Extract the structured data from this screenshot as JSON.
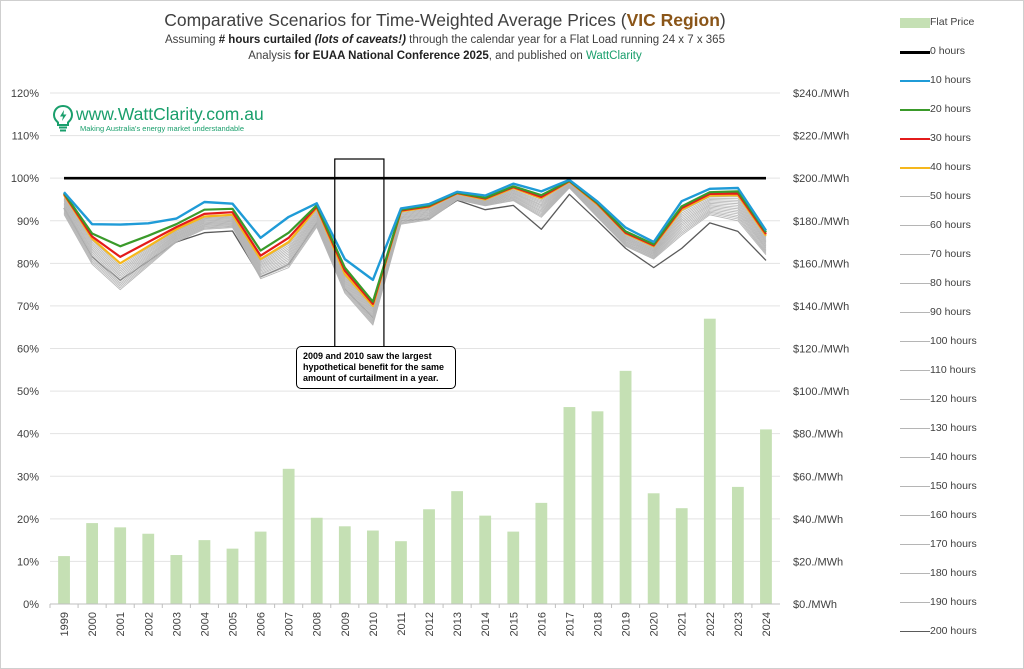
{
  "header": {
    "title_main": "Comparative Scenarios for Time-Weighted Average Prices (",
    "title_accent": "VIC Region",
    "title_end": ")",
    "sub1_a": "Assuming ",
    "sub1_b": "# hours curtailed",
    "sub1_c": " (lots of caveats!)",
    "sub1_d": " through the calendar year for a Flat Load running 24 x 7 x 365",
    "sub2_a": "Analysis ",
    "sub2_b": "for EUAA National Conference 2025",
    "sub2_c": ", and published on ",
    "sub2_d": "WattClarity"
  },
  "logo": {
    "text": "www.WattClarity.com.au",
    "tagline": "Making Australia's energy market understandable",
    "icon": "lightbulb-icon"
  },
  "annotation": {
    "text": "2009 and 2010 saw the largest hypothetical benefit for the same amount of curtailment in a year."
  },
  "colors": {
    "bar": "#c5e0b4",
    "h0": "#000000",
    "h10": "#1f9bd7",
    "h20": "#3a9a2a",
    "h30": "#e31b1b",
    "h40": "#f5b71d",
    "grey": "#b5b5b5",
    "h200": "#5a5a5a"
  },
  "chart_data": {
    "type": "bar+line",
    "categories": [
      "1999",
      "2000",
      "2001",
      "2002",
      "2003",
      "2004",
      "2005",
      "2006",
      "2007",
      "2008",
      "2009",
      "2010",
      "2011",
      "2012",
      "2013",
      "2014",
      "2015",
      "2016",
      "2017",
      "2018",
      "2019",
      "2020",
      "2021",
      "2022",
      "2023",
      "2024"
    ],
    "left_axis": {
      "min": 0,
      "max": 120,
      "ticks": [
        "0%",
        "10%",
        "20%",
        "30%",
        "40%",
        "50%",
        "60%",
        "70%",
        "80%",
        "90%",
        "100%",
        "110%",
        "120%"
      ]
    },
    "right_axis": {
      "min": 0,
      "max": 240,
      "ticks": [
        "$0./MWh",
        "$20./MWh",
        "$40./MWh",
        "$60./MWh",
        "$80./MWh",
        "$100./MWh",
        "$120./MWh",
        "$140./MWh",
        "$160./MWh",
        "$180./MWh",
        "$200./MWh",
        "$220./MWh",
        "$240./MWh"
      ]
    },
    "bars": {
      "name": "Flat Price",
      "values": [
        22.5,
        38,
        36,
        33,
        23,
        30,
        26,
        34,
        63.5,
        40.5,
        36.5,
        34.5,
        29.5,
        44.5,
        53,
        41.5,
        34,
        47.5,
        92.5,
        90.5,
        109.5,
        52,
        45,
        134,
        55,
        82
      ]
    },
    "series": [
      {
        "name": "0 hours",
        "values": [
          100,
          100,
          100,
          100,
          100,
          100,
          100,
          100,
          100,
          100,
          100,
          100,
          100,
          100,
          100,
          100,
          100,
          100,
          100,
          100,
          100,
          100,
          100,
          100,
          100,
          100
        ]
      },
      {
        "name": "10 hours",
        "values": [
          96.7,
          89.2,
          89.1,
          89.4,
          90.5,
          94.4,
          94.0,
          86.0,
          90.9,
          94.1,
          81.0,
          76.1,
          92.9,
          93.9,
          96.8,
          95.9,
          98.7,
          96.9,
          99.6,
          94.5,
          88.4,
          85.0,
          94.6,
          97.5,
          97.7,
          87.7
        ]
      },
      {
        "name": "20 hours",
        "values": [
          96.5,
          87.0,
          84.0,
          86.5,
          89.2,
          92.6,
          92.8,
          83.0,
          87.2,
          93.6,
          79.0,
          71.0,
          92.6,
          93.6,
          96.6,
          95.4,
          98.1,
          96.0,
          99.4,
          94.2,
          87.5,
          84.5,
          93.4,
          96.7,
          96.9,
          87.3
        ]
      },
      {
        "name": "30 hours",
        "values": [
          96.3,
          86.3,
          81.5,
          85.0,
          88.5,
          91.6,
          92.0,
          81.8,
          86.0,
          93.3,
          78.3,
          70.5,
          92.4,
          93.4,
          96.5,
          95.2,
          97.9,
          95.6,
          99.3,
          94.0,
          87.2,
          84.2,
          93.0,
          96.3,
          96.4,
          86.9
        ]
      },
      {
        "name": "40 hours",
        "values": [
          96.1,
          85.8,
          80.0,
          84.0,
          88.0,
          91.0,
          91.4,
          81.0,
          85.0,
          93.0,
          77.5,
          70.0,
          92.2,
          93.2,
          96.4,
          95.0,
          97.7,
          95.3,
          99.2,
          93.8,
          87.0,
          84.0,
          92.6,
          95.9,
          96.0,
          86.5
        ]
      },
      {
        "name": "50 hours",
        "values": [
          95.7,
          85.4,
          79.4,
          83.6,
          87.8,
          90.8,
          91.2,
          80.6,
          84.6,
          92.7,
          77.2,
          69.7,
          92.0,
          93.0,
          96.3,
          94.9,
          97.5,
          95.0,
          99.1,
          93.6,
          86.8,
          83.8,
          92.2,
          95.6,
          95.6,
          86.2
        ]
      },
      {
        "name": "60 hours",
        "values": [
          95.4,
          85.0,
          79.0,
          83.3,
          87.6,
          90.6,
          91.0,
          80.3,
          84.2,
          92.4,
          76.9,
          69.4,
          91.8,
          92.8,
          96.2,
          94.8,
          97.3,
          94.7,
          99.0,
          93.4,
          86.6,
          83.6,
          91.8,
          95.3,
          95.2,
          85.9
        ]
      },
      {
        "name": "70 hours",
        "values": [
          95.1,
          84.6,
          78.6,
          83.0,
          87.4,
          90.4,
          90.8,
          80.0,
          83.8,
          92.1,
          76.6,
          69.1,
          91.6,
          92.6,
          96.1,
          94.7,
          97.1,
          94.4,
          98.9,
          93.2,
          86.4,
          83.4,
          91.4,
          95.0,
          94.8,
          85.6
        ]
      },
      {
        "name": "80 hours",
        "values": [
          94.8,
          84.2,
          78.2,
          82.7,
          87.2,
          90.2,
          90.6,
          79.7,
          83.4,
          91.8,
          76.3,
          68.8,
          91.4,
          92.4,
          96.0,
          94.6,
          96.9,
          94.1,
          98.8,
          93.0,
          86.2,
          83.2,
          91.0,
          94.7,
          94.4,
          85.3
        ]
      },
      {
        "name": "90 hours",
        "values": [
          94.5,
          83.8,
          77.8,
          82.4,
          87.0,
          90.0,
          90.4,
          79.4,
          83.0,
          91.5,
          76.0,
          68.5,
          91.2,
          92.2,
          95.9,
          94.5,
          96.7,
          93.8,
          98.7,
          92.8,
          86.0,
          83.0,
          90.6,
          94.4,
          94.0,
          85.0
        ]
      },
      {
        "name": "100 hours",
        "values": [
          94.2,
          83.4,
          77.4,
          82.1,
          86.8,
          89.8,
          90.2,
          79.1,
          82.6,
          91.2,
          75.7,
          68.2,
          91.0,
          92.0,
          95.8,
          94.4,
          96.5,
          93.5,
          98.6,
          92.6,
          85.8,
          82.8,
          90.2,
          94.1,
          93.6,
          84.7
        ]
      },
      {
        "name": "110 hours",
        "values": [
          93.9,
          83.0,
          77.0,
          81.8,
          86.6,
          89.6,
          90.0,
          78.8,
          82.2,
          90.9,
          75.4,
          67.9,
          90.8,
          91.8,
          95.7,
          94.3,
          96.3,
          93.2,
          98.5,
          92.4,
          85.6,
          82.6,
          89.8,
          93.8,
          93.2,
          84.4
        ]
      },
      {
        "name": "120 hours",
        "values": [
          93.6,
          82.6,
          76.6,
          81.5,
          86.4,
          89.4,
          89.8,
          78.5,
          81.8,
          90.6,
          75.1,
          67.6,
          90.6,
          91.6,
          95.6,
          94.2,
          96.1,
          92.9,
          98.4,
          92.2,
          85.4,
          82.4,
          89.4,
          93.5,
          92.8,
          84.1
        ]
      },
      {
        "name": "130 hours",
        "values": [
          93.3,
          82.2,
          76.2,
          81.2,
          86.2,
          89.2,
          89.6,
          78.2,
          81.4,
          90.3,
          74.8,
          67.3,
          90.4,
          91.4,
          95.5,
          94.1,
          95.9,
          92.6,
          98.3,
          92.0,
          85.2,
          82.2,
          89.0,
          93.2,
          92.4,
          83.8
        ]
      },
      {
        "name": "140 hours",
        "values": [
          93.0,
          81.8,
          75.8,
          80.9,
          86.0,
          89.0,
          89.4,
          77.9,
          81.0,
          90.0,
          74.5,
          67.0,
          90.2,
          91.2,
          95.4,
          94.0,
          95.7,
          92.3,
          98.2,
          91.8,
          85.0,
          82.0,
          88.6,
          92.9,
          92.0,
          83.5
        ]
      },
      {
        "name": "150 hours",
        "values": [
          92.7,
          81.4,
          75.4,
          80.6,
          85.8,
          88.8,
          89.2,
          77.6,
          80.6,
          89.7,
          74.2,
          66.7,
          90.0,
          91.0,
          95.3,
          93.9,
          95.5,
          92.0,
          98.1,
          91.6,
          84.8,
          81.8,
          88.2,
          92.6,
          91.6,
          83.2
        ]
      },
      {
        "name": "160 hours",
        "values": [
          92.4,
          81.0,
          75.0,
          80.3,
          85.6,
          88.6,
          89.0,
          77.3,
          80.2,
          89.4,
          73.9,
          66.4,
          89.8,
          90.8,
          95.2,
          93.8,
          95.3,
          91.7,
          98.0,
          91.4,
          84.6,
          81.6,
          87.8,
          92.3,
          91.2,
          82.9
        ]
      },
      {
        "name": "170 hours",
        "values": [
          92.1,
          80.6,
          74.6,
          80.0,
          85.4,
          88.4,
          88.8,
          77.0,
          79.8,
          89.1,
          73.6,
          66.1,
          89.6,
          90.6,
          95.1,
          93.7,
          95.1,
          91.4,
          97.9,
          91.2,
          84.4,
          81.4,
          87.4,
          92.0,
          90.8,
          82.6
        ]
      },
      {
        "name": "180 hours",
        "values": [
          91.8,
          80.2,
          74.2,
          79.7,
          85.2,
          88.2,
          88.6,
          76.7,
          79.4,
          88.8,
          73.3,
          65.8,
          89.4,
          90.4,
          95.0,
          93.6,
          94.9,
          91.1,
          97.8,
          91.0,
          84.2,
          81.2,
          87.0,
          91.7,
          90.4,
          82.3
        ]
      },
      {
        "name": "190 hours",
        "values": [
          91.5,
          79.8,
          73.8,
          79.4,
          85.0,
          88.0,
          88.4,
          76.4,
          79.0,
          88.5,
          73.0,
          65.5,
          89.2,
          90.2,
          94.9,
          93.5,
          94.7,
          90.8,
          97.7,
          90.8,
          84.0,
          81.0,
          86.6,
          91.4,
          90.0,
          82.0
        ]
      },
      {
        "name": "200 hours",
        "values": [
          93.0,
          81.5,
          76.0,
          80.5,
          85.0,
          87.2,
          87.6,
          76.8,
          79.8,
          89.5,
          74.0,
          67.3,
          90.0,
          90.4,
          94.8,
          92.6,
          93.6,
          88.0,
          96.2,
          90.0,
          83.5,
          79.0,
          83.5,
          89.5,
          87.5,
          80.7
        ]
      }
    ],
    "legend_position": "right",
    "highlight_years": [
      "2009",
      "2010"
    ],
    "grid": true
  }
}
